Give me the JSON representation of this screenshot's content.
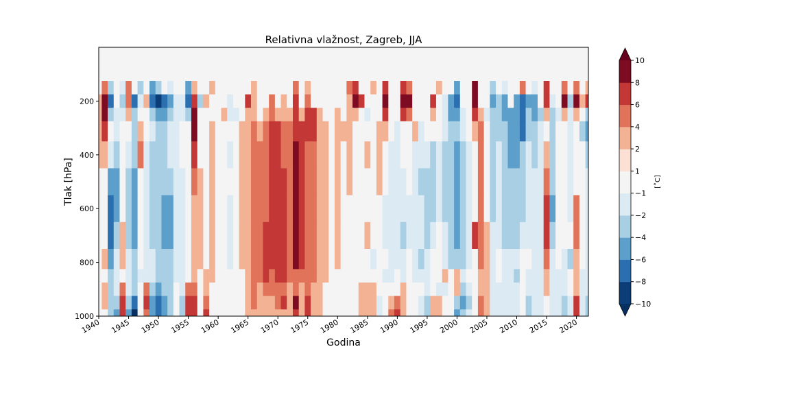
{
  "chart_data": {
    "type": "heatmap",
    "title": "Relativna vlažnost, Zagreb, JJA",
    "xlabel": "Godina",
    "ylabel": "Tlak [hPa]",
    "xlim": [
      1940,
      2022
    ],
    "ylim": [
      0,
      1000
    ],
    "y_inverted": true,
    "x_ticks": [
      "1940",
      "1945",
      "1950",
      "1955",
      "1960",
      "1965",
      "1970",
      "1975",
      "1980",
      "1985",
      "1990",
      "1995",
      "2000",
      "2005",
      "2010",
      "2015",
      "2020"
    ],
    "y_ticks": [
      "200",
      "400",
      "600",
      "800",
      "1000"
    ],
    "colorbar": {
      "label": "[˚C]",
      "levels": [
        -10,
        -8,
        -6,
        -4,
        -2,
        -1,
        1,
        2,
        4,
        6,
        8,
        10
      ],
      "tick_labels": [
        "−10",
        "−8",
        "−6",
        "−4",
        "−2",
        "−1",
        "1",
        "2",
        "4",
        "6",
        "8",
        "10"
      ],
      "colors": [
        "#0b3d78",
        "#2b6fb0",
        "#5d9fcb",
        "#a8cfe4",
        "#dceaf4",
        "#f4f4f4",
        "#fbe0d3",
        "#f4b295",
        "#e0735a",
        "#c33837",
        "#7d0c22"
      ],
      "extend_colors": [
        "#053061",
        "#67001f"
      ]
    },
    "colors": {
      "nodata": "#f4f4f4"
    },
    "pressure_levels": [
      100,
      150,
      200,
      250,
      300,
      400,
      500,
      600,
      700,
      800,
      850,
      900,
      950,
      1000
    ],
    "years": [
      1940,
      1941,
      1942,
      1943,
      1944,
      1945,
      1946,
      1947,
      1948,
      1949,
      1950,
      1951,
      1952,
      1953,
      1954,
      1955,
      1956,
      1957,
      1958,
      1959,
      1960,
      1961,
      1962,
      1963,
      1964,
      1965,
      1966,
      1967,
      1968,
      1969,
      1970,
      1971,
      1972,
      1973,
      1974,
      1975,
      1976,
      1977,
      1978,
      1979,
      1980,
      1981,
      1982,
      1983,
      1984,
      1985,
      1986,
      1987,
      1988,
      1989,
      1990,
      1991,
      1992,
      1993,
      1994,
      1995,
      1996,
      1997,
      1998,
      1999,
      2000,
      2001,
      2002,
      2003,
      2004,
      2005,
      2006,
      2007,
      2008,
      2009,
      2010,
      2011,
      2012,
      2013,
      2014,
      2015,
      2016,
      2017,
      2018,
      2019,
      2020,
      2021,
      2022
    ],
    "values": [
      [
        0,
        0,
        0,
        0,
        0,
        0,
        0,
        0,
        0,
        0,
        0,
        0,
        0,
        0,
        0,
        0,
        0,
        0,
        0,
        0,
        0,
        0,
        0,
        0,
        0,
        0,
        0,
        0,
        0,
        0,
        0,
        0,
        0,
        0,
        0,
        0,
        0,
        0,
        0,
        0,
        0,
        0,
        0,
        0,
        0,
        0,
        0,
        0,
        0,
        0,
        0,
        0,
        0,
        0,
        0,
        0,
        0,
        0,
        0,
        0,
        0,
        0,
        0,
        0,
        0,
        0,
        0,
        0,
        0,
        0,
        0,
        0,
        0,
        0,
        0,
        0,
        0,
        0,
        0,
        0,
        0,
        0,
        0
      ],
      [
        0,
        5,
        -3,
        0,
        -2,
        4,
        0,
        -4,
        0,
        -5,
        -4,
        0,
        -2,
        0,
        0,
        -6,
        3,
        0,
        0,
        2,
        0,
        0,
        0,
        0,
        0,
        0,
        3,
        0,
        0,
        0,
        0,
        0,
        0,
        4,
        0,
        2,
        0,
        0,
        0,
        0,
        0,
        0,
        4,
        6,
        0,
        0,
        3,
        0,
        6,
        0,
        0,
        6,
        5,
        0,
        0,
        0,
        0,
        3,
        0,
        0,
        -5,
        0,
        0,
        8,
        0,
        0,
        -3,
        0,
        -2,
        0,
        0,
        4,
        0,
        -2,
        0,
        6,
        0,
        0,
        5,
        0,
        4,
        0,
        2
      ],
      [
        2,
        9,
        -7,
        0,
        -3,
        4,
        -7,
        -2,
        2,
        -8,
        -9,
        -8,
        -6,
        -2,
        -2,
        -8,
        6,
        -4,
        2,
        0,
        0,
        0,
        -2,
        0,
        0,
        7,
        2,
        0,
        0,
        4,
        0,
        3,
        0,
        6,
        0,
        5,
        0,
        0,
        0,
        0,
        0,
        0,
        2,
        9,
        6,
        0,
        0,
        0,
        9,
        0,
        0,
        9,
        9,
        0,
        0,
        0,
        6,
        0,
        -2,
        -6,
        -8,
        0,
        0,
        9,
        0,
        0,
        -6,
        -4,
        -5,
        0,
        -6,
        -7,
        -5,
        -6,
        0,
        6,
        -2,
        0,
        8,
        -3,
        8,
        3,
        6
      ],
      [
        2,
        9,
        -3,
        -2,
        -2,
        2,
        -4,
        0,
        0,
        -4,
        -6,
        -6,
        -4,
        -2,
        -2,
        -3,
        9,
        0,
        0,
        0,
        0,
        2,
        -2,
        -2,
        0,
        2,
        2,
        0,
        2,
        5,
        2,
        3,
        2,
        7,
        2,
        6,
        6,
        2,
        0,
        0,
        2,
        0,
        2,
        3,
        0,
        -2,
        0,
        0,
        6,
        0,
        0,
        6,
        4,
        0,
        0,
        0,
        2,
        0,
        -2,
        -6,
        -6,
        -2,
        0,
        6,
        2,
        -2,
        -4,
        -4,
        -6,
        -6,
        -6,
        -7,
        -4,
        -6,
        -4,
        2,
        -4,
        -2,
        2,
        -2,
        2,
        0,
        -4
      ],
      [
        2,
        6,
        0,
        -2,
        0,
        0,
        -3,
        2,
        0,
        -2,
        -3,
        -4,
        -2,
        -2,
        0,
        0,
        8,
        0,
        0,
        2,
        0,
        0,
        0,
        0,
        2,
        2,
        4,
        2,
        4,
        7,
        6,
        4,
        5,
        7,
        6,
        6,
        6,
        2,
        2,
        0,
        2,
        2,
        2,
        0,
        0,
        0,
        0,
        2,
        2,
        0,
        -2,
        0,
        0,
        2,
        -2,
        0,
        0,
        0,
        -2,
        -4,
        -4,
        -2,
        0,
        2,
        4,
        0,
        -4,
        -4,
        -4,
        -6,
        -6,
        -7,
        -4,
        -4,
        -2,
        0,
        -4,
        0,
        0,
        -2,
        0,
        -4,
        -5
      ],
      [
        2,
        3,
        -2,
        -4,
        0,
        -2,
        -4,
        5,
        -2,
        -4,
        -4,
        -4,
        -2,
        -2,
        0,
        0,
        7,
        0,
        0,
        2,
        0,
        0,
        -2,
        0,
        2,
        3,
        4,
        4,
        5,
        6,
        6,
        5,
        5,
        9,
        6,
        4,
        4,
        2,
        2,
        0,
        2,
        0,
        2,
        0,
        0,
        2,
        0,
        2,
        0,
        -2,
        -2,
        0,
        0,
        -2,
        -2,
        -2,
        -4,
        -2,
        -4,
        -4,
        -6,
        -4,
        -2,
        0,
        5,
        0,
        -4,
        -2,
        -4,
        -6,
        -6,
        -4,
        -2,
        -4,
        -2,
        2,
        -4,
        0,
        0,
        -2,
        0,
        0,
        -4
      ],
      [
        0,
        0,
        -6,
        -6,
        0,
        -4,
        -5,
        0,
        -2,
        -4,
        -4,
        -4,
        -3,
        -2,
        -2,
        0,
        4,
        2,
        0,
        2,
        0,
        0,
        0,
        0,
        2,
        3,
        4,
        4,
        5,
        6,
        6,
        6,
        5,
        9,
        6,
        4,
        4,
        2,
        2,
        0,
        2,
        0,
        2,
        0,
        0,
        0,
        0,
        2,
        0,
        -2,
        -2,
        -2,
        0,
        -2,
        -4,
        -4,
        -4,
        -2,
        -4,
        -4,
        -6,
        -4,
        -2,
        0,
        5,
        0,
        -4,
        -2,
        -4,
        -4,
        -4,
        -4,
        -2,
        -2,
        -2,
        4,
        -4,
        0,
        0,
        -2,
        0,
        0,
        -2
      ],
      [
        0,
        0,
        -8,
        -6,
        0,
        -4,
        -6,
        0,
        -2,
        -4,
        -4,
        -6,
        -5,
        -2,
        -2,
        0,
        3,
        2,
        0,
        2,
        0,
        0,
        -2,
        0,
        2,
        3,
        4,
        4,
        5,
        6,
        6,
        6,
        5,
        9,
        6,
        4,
        4,
        2,
        2,
        0,
        2,
        0,
        0,
        0,
        0,
        0,
        0,
        0,
        -2,
        -2,
        -2,
        -2,
        -2,
        -2,
        -2,
        -4,
        -4,
        -2,
        -4,
        -4,
        -6,
        -4,
        -2,
        0,
        5,
        0,
        -4,
        -2,
        -4,
        -4,
        -4,
        -4,
        -2,
        -2,
        -2,
        6,
        -6,
        0,
        0,
        -2,
        4,
        0,
        -2
      ],
      [
        0,
        0,
        -8,
        -4,
        2,
        -4,
        -6,
        0,
        -2,
        -4,
        -4,
        -6,
        -5,
        -2,
        -2,
        0,
        2,
        2,
        0,
        2,
        0,
        0,
        -2,
        0,
        2,
        3,
        4,
        5,
        6,
        7,
        6,
        6,
        5,
        9,
        6,
        4,
        4,
        2,
        2,
        0,
        2,
        0,
        0,
        0,
        0,
        2,
        0,
        0,
        -2,
        -2,
        -2,
        -4,
        -2,
        -2,
        -2,
        -4,
        -2,
        0,
        -2,
        -4,
        -6,
        -4,
        -2,
        6,
        5,
        2,
        -2,
        -2,
        -4,
        -4,
        -4,
        -2,
        -2,
        -2,
        -2,
        7,
        -4,
        0,
        0,
        0,
        4,
        0,
        -2
      ],
      [
        0,
        2,
        -6,
        -2,
        2,
        -2,
        -4,
        0,
        -2,
        -2,
        -3,
        -4,
        -4,
        -2,
        -2,
        0,
        2,
        2,
        0,
        2,
        0,
        0,
        -2,
        0,
        2,
        3,
        4,
        5,
        6,
        6,
        6,
        6,
        5,
        8,
        6,
        4,
        4,
        2,
        2,
        0,
        2,
        0,
        0,
        0,
        0,
        0,
        -2,
        0,
        0,
        -2,
        -2,
        -2,
        0,
        -2,
        -4,
        -2,
        0,
        0,
        -2,
        -4,
        -4,
        -4,
        -2,
        0,
        4,
        2,
        -2,
        0,
        -2,
        -2,
        -2,
        0,
        0,
        -2,
        -2,
        4,
        -2,
        0,
        -2,
        -4,
        2,
        0,
        -2
      ],
      [
        0,
        0,
        -4,
        -2,
        0,
        -2,
        -4,
        -2,
        -2,
        -2,
        -4,
        -4,
        -4,
        -2,
        -2,
        0,
        2,
        0,
        2,
        2,
        0,
        0,
        0,
        0,
        0,
        2,
        4,
        4,
        6,
        5,
        6,
        6,
        4,
        4,
        4,
        4,
        4,
        2,
        2,
        0,
        0,
        0,
        0,
        0,
        0,
        0,
        0,
        0,
        -2,
        -2,
        0,
        -2,
        0,
        -2,
        -2,
        -2,
        0,
        0,
        2,
        0,
        2,
        -2,
        0,
        0,
        2,
        2,
        -2,
        0,
        -2,
        -2,
        -4,
        0,
        -2,
        -2,
        -2,
        2,
        -2,
        -2,
        -2,
        0,
        2,
        -2,
        -2
      ],
      [
        0,
        2,
        -4,
        -2,
        4,
        -2,
        -4,
        0,
        4,
        -4,
        -6,
        -4,
        -4,
        0,
        -2,
        4,
        4,
        0,
        2,
        0,
        0,
        0,
        0,
        0,
        0,
        2,
        4,
        2,
        4,
        4,
        4,
        4,
        2,
        4,
        2,
        4,
        2,
        2,
        0,
        0,
        0,
        0,
        0,
        0,
        2,
        2,
        2,
        0,
        0,
        0,
        0,
        2,
        0,
        0,
        0,
        -2,
        0,
        -2,
        -2,
        0,
        2,
        -4,
        -2,
        0,
        2,
        2,
        -2,
        -2,
        -2,
        -2,
        -2,
        0,
        -2,
        -2,
        -2,
        2,
        -2,
        -2,
        -2,
        0,
        2,
        -2,
        -2
      ],
      [
        0,
        2,
        -4,
        -4,
        6,
        -4,
        -8,
        0,
        6,
        -6,
        -8,
        -6,
        -4,
        0,
        -4,
        6,
        6,
        0,
        4,
        0,
        0,
        0,
        0,
        0,
        0,
        2,
        4,
        2,
        2,
        2,
        4,
        6,
        2,
        8,
        2,
        6,
        2,
        2,
        0,
        0,
        0,
        0,
        0,
        0,
        2,
        2,
        2,
        -2,
        0,
        2,
        4,
        2,
        0,
        0,
        -2,
        -4,
        2,
        2,
        0,
        0,
        -4,
        -6,
        -4,
        0,
        4,
        2,
        -2,
        -2,
        -2,
        -2,
        -2,
        0,
        -4,
        -2,
        -2,
        0,
        -2,
        -2,
        -4,
        -2,
        6,
        -2,
        -4
      ],
      [
        0,
        0,
        -4,
        -6,
        6,
        -6,
        -10,
        0,
        4,
        -6,
        -8,
        -6,
        -4,
        0,
        -4,
        6,
        6,
        0,
        6,
        0,
        0,
        0,
        0,
        0,
        0,
        2,
        2,
        2,
        2,
        2,
        2,
        2,
        2,
        6,
        2,
        6,
        2,
        2,
        0,
        0,
        0,
        0,
        0,
        0,
        2,
        2,
        2,
        -2,
        0,
        4,
        6,
        2,
        0,
        0,
        -2,
        -4,
        2,
        2,
        0,
        0,
        -6,
        -4,
        -2,
        0,
        4,
        2,
        -2,
        -2,
        -2,
        -2,
        -2,
        0,
        -4,
        -2,
        -2,
        0,
        -2,
        -2,
        -4,
        -2,
        6,
        -2,
        -4
      ]
    ]
  }
}
